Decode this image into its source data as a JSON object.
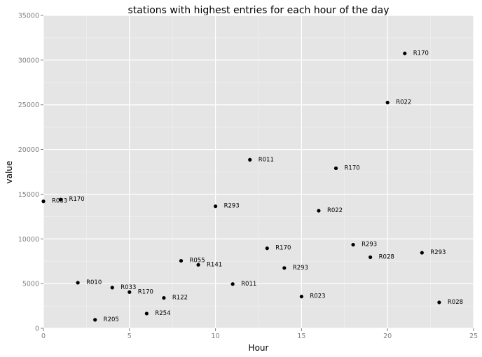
{
  "chart_data": {
    "type": "scatter",
    "title": "stations with highest entries for each hour of the day",
    "xlabel": "Hour",
    "ylabel": "value",
    "xlim": [
      0,
      25
    ],
    "ylim": [
      0,
      35000
    ],
    "xticks": [
      0,
      5,
      10,
      15,
      20,
      25
    ],
    "yticks": [
      0,
      5000,
      10000,
      15000,
      20000,
      25000,
      30000,
      35000
    ],
    "grid": true,
    "legend": "none",
    "colors": {
      "panel": "#e5e5e5",
      "grid_major": "#ffffff",
      "grid_minor": "#f2f2f2",
      "point": "#000000",
      "tick": "#7f7f7f"
    },
    "points": [
      {
        "x": 0,
        "y": 14200,
        "label": "R033"
      },
      {
        "x": 1,
        "y": 14400,
        "label": "R170"
      },
      {
        "x": 2,
        "y": 5100,
        "label": "R010"
      },
      {
        "x": 3,
        "y": 950,
        "label": "R205"
      },
      {
        "x": 4,
        "y": 4550,
        "label": "R033"
      },
      {
        "x": 5,
        "y": 4050,
        "label": "R170"
      },
      {
        "x": 6,
        "y": 1650,
        "label": "R254"
      },
      {
        "x": 7,
        "y": 3400,
        "label": "R122"
      },
      {
        "x": 8,
        "y": 7550,
        "label": "R055"
      },
      {
        "x": 9,
        "y": 7100,
        "label": "R141"
      },
      {
        "x": 10,
        "y": 13650,
        "label": "R293"
      },
      {
        "x": 11,
        "y": 4950,
        "label": "R011"
      },
      {
        "x": 12,
        "y": 18850,
        "label": "R011"
      },
      {
        "x": 13,
        "y": 8950,
        "label": "R170"
      },
      {
        "x": 14,
        "y": 6750,
        "label": "R293"
      },
      {
        "x": 15,
        "y": 3550,
        "label": "R023"
      },
      {
        "x": 16,
        "y": 13150,
        "label": "R022"
      },
      {
        "x": 17,
        "y": 17900,
        "label": "R170"
      },
      {
        "x": 18,
        "y": 9350,
        "label": "R293"
      },
      {
        "x": 19,
        "y": 7950,
        "label": "R028"
      },
      {
        "x": 20,
        "y": 25250,
        "label": "R022"
      },
      {
        "x": 21,
        "y": 30750,
        "label": "R170"
      },
      {
        "x": 22,
        "y": 8450,
        "label": "R293"
      },
      {
        "x": 23,
        "y": 2900,
        "label": "R028"
      }
    ]
  }
}
